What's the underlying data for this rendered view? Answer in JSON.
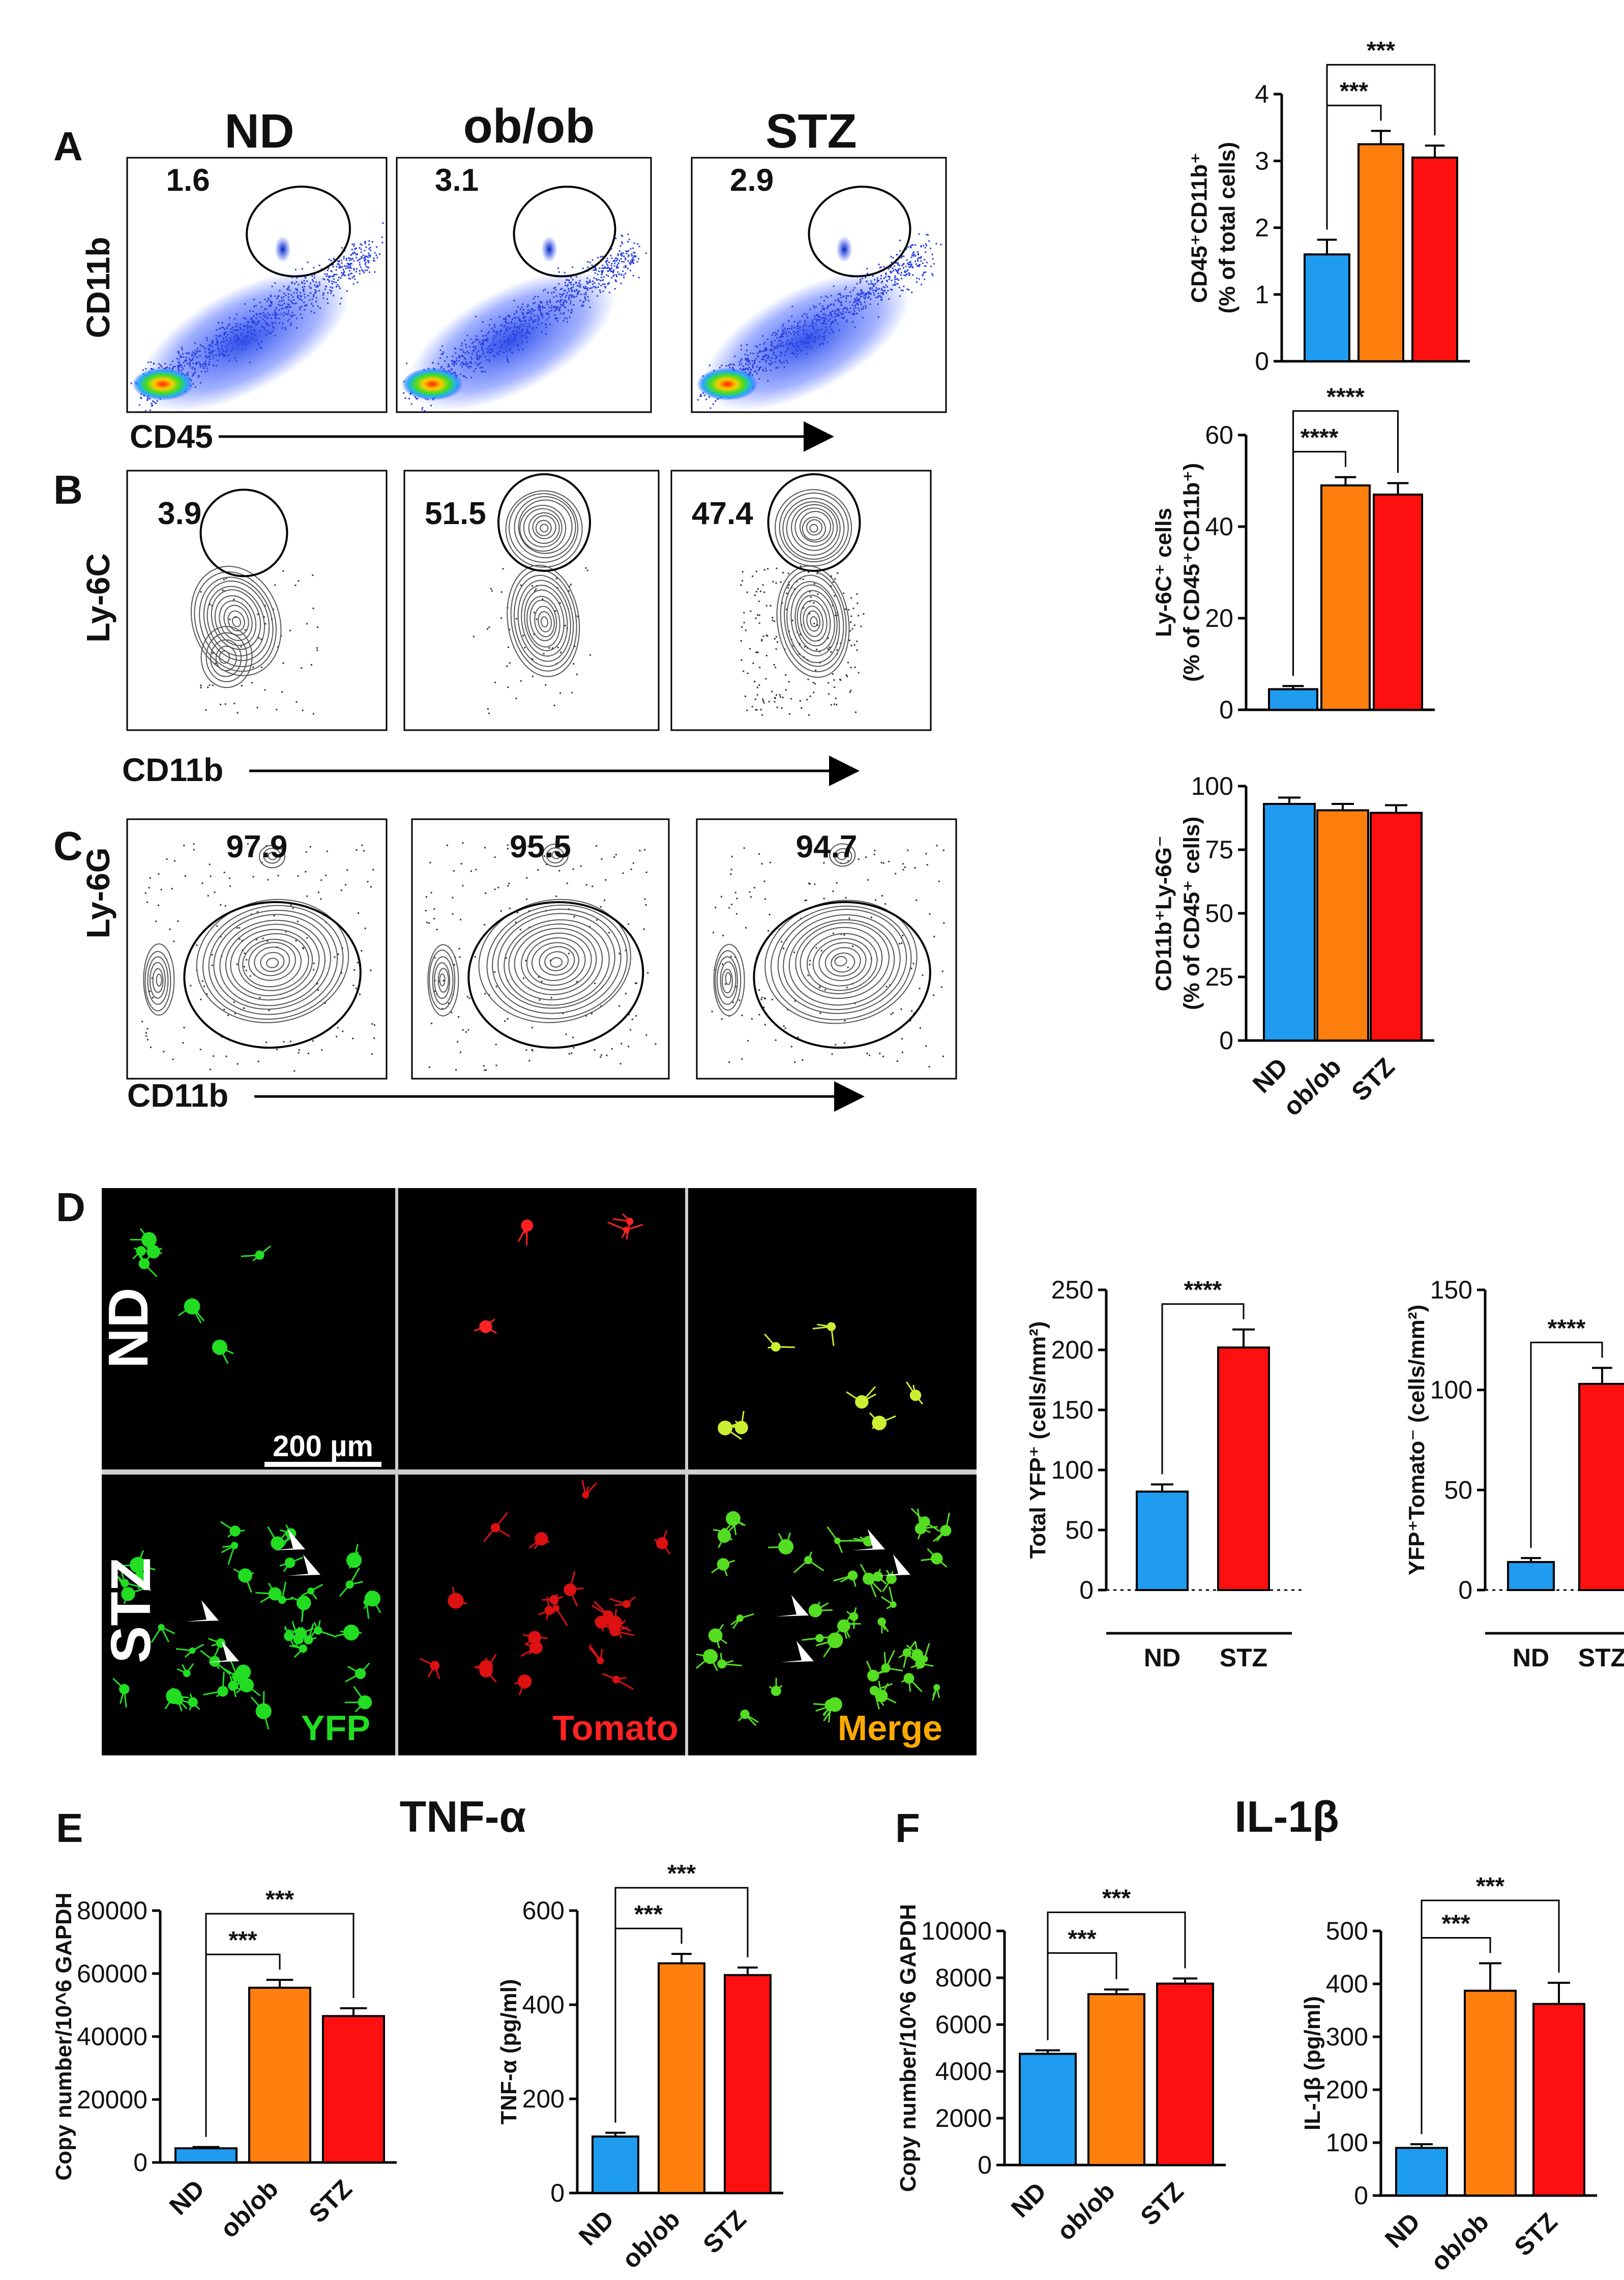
{
  "panels": {
    "a": {
      "label": "A",
      "groups": [
        "ND",
        "ob/ob",
        "STZ"
      ],
      "gate_values": [
        "1.6",
        "3.1",
        "2.9"
      ],
      "y_axis_label": "CD11b",
      "x_axis_label": "CD45"
    },
    "b": {
      "label": "B",
      "gate_values": [
        "3.9",
        "51.5",
        "47.4"
      ],
      "y_axis_label": "Ly-6C",
      "x_axis_label": "CD11b"
    },
    "c": {
      "label": "C",
      "gate_values": [
        "97.9",
        "95.5",
        "94.7"
      ],
      "y_axis_label": "Ly-6G",
      "x_axis_label": "CD11b"
    },
    "d": {
      "label": "D",
      "row_labels": [
        "ND",
        "STZ"
      ],
      "channel_labels": [
        "YFP",
        "Tomato",
        "Merge"
      ],
      "scale_bar": "200 µm"
    },
    "e": {
      "label": "E",
      "title": "TNF-α"
    },
    "f": {
      "label": "F",
      "title": "IL-1β"
    }
  },
  "colors": {
    "ND": "#1f9bf0",
    "ob/ob": "#ff7f0e",
    "STZ": "#ff1010",
    "YFP": "#22dd22",
    "Tomato": "#ff2222",
    "Merge": "#ffaa00"
  },
  "chart_data": [
    {
      "id": "a",
      "type": "bar",
      "categories": [
        "ND",
        "ob/ob",
        "STZ"
      ],
      "values": [
        1.6,
        3.25,
        3.05
      ],
      "errors": [
        0.22,
        0.2,
        0.18
      ],
      "ylim": [
        0,
        4
      ],
      "yticks": [
        "0",
        "1",
        "2",
        "3",
        "4"
      ],
      "ylabel_lines": [
        "CD45⁺CD11b⁺",
        "(% of total cells)"
      ],
      "show_xticklabels": false,
      "brackets": [
        {
          "from": 0,
          "to": 1,
          "label": "***"
        },
        {
          "from": 0,
          "to": 2,
          "label": "***"
        }
      ]
    },
    {
      "id": "b",
      "type": "bar",
      "categories": [
        "ND",
        "ob/ob",
        "STZ"
      ],
      "values": [
        4.5,
        49,
        47
      ],
      "errors": [
        0.7,
        1.8,
        2.5
      ],
      "ylim": [
        0,
        60
      ],
      "yticks": [
        "0",
        "20",
        "40",
        "60"
      ],
      "ylabel_lines": [
        "Ly-6C⁺ cells",
        "(% of CD45⁺CD11b⁺)"
      ],
      "show_xticklabels": false,
      "brackets": [
        {
          "from": 0,
          "to": 1,
          "label": "****"
        },
        {
          "from": 0,
          "to": 2,
          "label": "****"
        }
      ]
    },
    {
      "id": "c",
      "type": "bar",
      "categories": [
        "ND",
        "ob/ob",
        "STZ"
      ],
      "values": [
        93,
        90.5,
        89.5
      ],
      "errors": [
        2.5,
        2.5,
        3
      ],
      "ylim": [
        0,
        100
      ],
      "yticks": [
        "0",
        "25",
        "50",
        "75",
        "100"
      ],
      "ylabel_lines": [
        "CD11b⁺Ly-6G⁻",
        "(% of CD45⁺ cells)"
      ],
      "show_xticklabels": true,
      "brackets": []
    },
    {
      "id": "d1",
      "type": "bar",
      "categories": [
        "ND",
        "STZ"
      ],
      "values": [
        82,
        202
      ],
      "errors": [
        6,
        15
      ],
      "ylim": [
        0,
        250
      ],
      "yticks": [
        "0",
        "50",
        "100",
        "150",
        "200",
        "250"
      ],
      "ylabel_lines": [
        "Total YFP⁺ (cells/mm²)"
      ],
      "show_xticklabels": true,
      "brackets": [
        {
          "from": 0,
          "to": 1,
          "label": "****"
        }
      ]
    },
    {
      "id": "d2",
      "type": "bar",
      "categories": [
        "ND",
        "STZ"
      ],
      "values": [
        14,
        103
      ],
      "errors": [
        2,
        8
      ],
      "ylim": [
        0,
        150
      ],
      "yticks": [
        "0",
        "50",
        "100",
        "150"
      ],
      "ylabel_lines": [
        "YFP⁺Tomato⁻ (cells/mm²)"
      ],
      "show_xticklabels": true,
      "brackets": [
        {
          "from": 0,
          "to": 1,
          "label": "****"
        }
      ]
    },
    {
      "id": "e1",
      "type": "bar",
      "categories": [
        "ND",
        "ob/ob",
        "STZ"
      ],
      "values": [
        4500,
        55500,
        46500
      ],
      "errors": [
        400,
        2500,
        2500
      ],
      "ylim": [
        0,
        80000
      ],
      "yticks": [
        "0",
        "20000",
        "40000",
        "60000",
        "80000"
      ],
      "ylabel_lines": [
        "Copy number/10^6 GAPDH"
      ],
      "show_xticklabels": true,
      "brackets": [
        {
          "from": 0,
          "to": 1,
          "label": "***"
        },
        {
          "from": 0,
          "to": 2,
          "label": "***"
        }
      ]
    },
    {
      "id": "e2",
      "type": "bar",
      "categories": [
        "ND",
        "ob/ob",
        "STZ"
      ],
      "values": [
        120,
        488,
        463
      ],
      "errors": [
        8,
        20,
        16
      ],
      "ylim": [
        0,
        600
      ],
      "yticks": [
        "0",
        "200",
        "400",
        "600"
      ],
      "ylabel_lines": [
        "TNF-α (pg/ml)"
      ],
      "show_xticklabels": true,
      "brackets": [
        {
          "from": 0,
          "to": 1,
          "label": "***"
        },
        {
          "from": 0,
          "to": 2,
          "label": "***"
        }
      ]
    },
    {
      "id": "f1",
      "type": "bar",
      "categories": [
        "ND",
        "ob/ob",
        "STZ"
      ],
      "values": [
        4750,
        7300,
        7750
      ],
      "errors": [
        150,
        200,
        220
      ],
      "ylim": [
        0,
        10000
      ],
      "yticks": [
        "0",
        "2000",
        "4000",
        "6000",
        "8000",
        "10000"
      ],
      "ylabel_lines": [
        "Copy number/10^6 GAPDH"
      ],
      "show_xticklabels": true,
      "brackets": [
        {
          "from": 0,
          "to": 1,
          "label": "***"
        },
        {
          "from": 0,
          "to": 2,
          "label": "***"
        }
      ]
    },
    {
      "id": "f2",
      "type": "bar",
      "categories": [
        "ND",
        "ob/ob",
        "STZ"
      ],
      "values": [
        90,
        387,
        362
      ],
      "errors": [
        7,
        52,
        40
      ],
      "ylim": [
        0,
        500
      ],
      "yticks": [
        "0",
        "100",
        "200",
        "300",
        "400",
        "500"
      ],
      "ylabel_lines": [
        "IL-1β (pg/ml)"
      ],
      "show_xticklabels": true,
      "brackets": [
        {
          "from": 0,
          "to": 1,
          "label": "***"
        },
        {
          "from": 0,
          "to": 2,
          "label": "***"
        }
      ]
    }
  ]
}
